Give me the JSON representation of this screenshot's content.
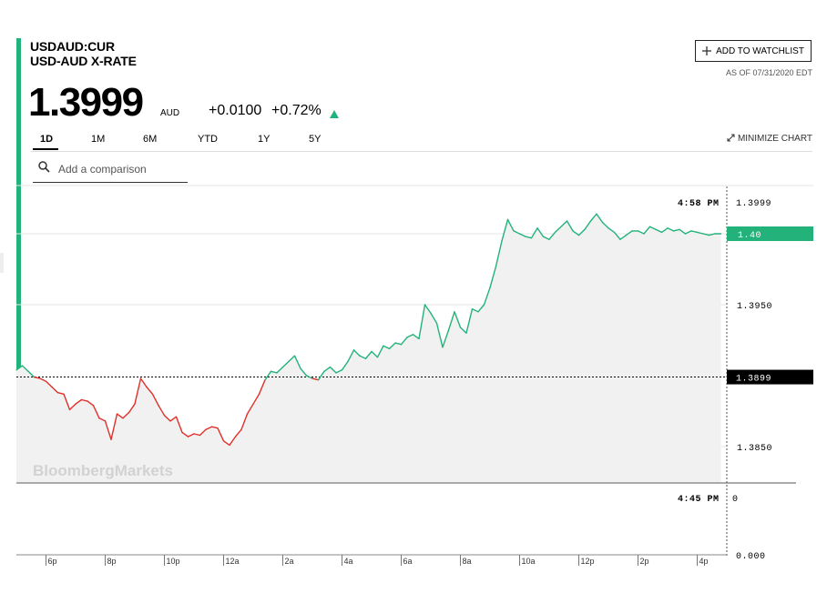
{
  "header": {
    "ticker": "USDAUD:CUR",
    "name": "USD-AUD X-RATE",
    "price": "1.3999",
    "currency": "AUD",
    "change": "+0.0100",
    "change_pct": "+0.72%",
    "watchlist_label": "ADD TO WATCHLIST",
    "as_of": "AS OF 07/31/2020 EDT"
  },
  "tabs": [
    {
      "label": "1D",
      "active": true
    },
    {
      "label": "1M",
      "active": false
    },
    {
      "label": "6M",
      "active": false
    },
    {
      "label": "YTD",
      "active": false
    },
    {
      "label": "1Y",
      "active": false
    },
    {
      "label": "5Y",
      "active": false
    }
  ],
  "minimize_label": "MINIMIZE CHART",
  "search": {
    "placeholder": "Add a comparison"
  },
  "colors": {
    "up": "#23b37a",
    "down": "#e0302a",
    "accent": "#23b37a",
    "reference": "#000000"
  },
  "chart_data": {
    "type": "line",
    "reference_value": 1.3899,
    "reference_label": "1.3899",
    "current_value": 1.4,
    "current_label": "1.40",
    "hover": {
      "time": "4:58 PM",
      "value": "1.3999"
    },
    "watermark": "BloombergMarkets",
    "ylim": [
      1.3825,
      1.4025
    ],
    "yticks": [
      {
        "value": 1.4,
        "label": "1.40"
      },
      {
        "value": 1.395,
        "label": "1.3950"
      },
      {
        "value": 1.385,
        "label": "1.3850"
      }
    ],
    "x_ticks": [
      "6p",
      "8p",
      "10p",
      "12a",
      "2a",
      "4a",
      "6a",
      "8a",
      "10a",
      "12p",
      "2p",
      "4p"
    ],
    "x": [
      0,
      0.2,
      0.4,
      0.6,
      0.8,
      1.0,
      1.2,
      1.4,
      1.6,
      1.8,
      2.0,
      2.2,
      2.4,
      2.6,
      2.8,
      3.0,
      3.2,
      3.4,
      3.6,
      3.8,
      4.0,
      4.2,
      4.4,
      4.6,
      4.8,
      5.0,
      5.2,
      5.4,
      5.6,
      5.8,
      6.0,
      6.2,
      6.4,
      6.6,
      6.8,
      7.0,
      7.2,
      7.4,
      7.6,
      7.8,
      8.0,
      8.2,
      8.4,
      8.6,
      8.8,
      9.0,
      9.2,
      9.4,
      9.6,
      9.8,
      10.0,
      10.2,
      10.4,
      10.6,
      10.8,
      11.0,
      11.2,
      11.4,
      11.6,
      11.8,
      12.0,
      12.2,
      12.4,
      12.6,
      12.8,
      13.0,
      13.2,
      13.4,
      13.6,
      13.8,
      14.0,
      14.2,
      14.4,
      14.6,
      14.8,
      15.0,
      15.2,
      15.4,
      15.6,
      15.8,
      16.0,
      16.2,
      16.4,
      16.6,
      16.8,
      17.0,
      17.2,
      17.4,
      17.6,
      17.8,
      18.0,
      18.2,
      18.4,
      18.6,
      18.8,
      19.0,
      19.2,
      19.4,
      19.6,
      19.8,
      20.0,
      20.2,
      20.4,
      20.6,
      20.8,
      21.0,
      21.2,
      21.4,
      21.6,
      21.8,
      22.0,
      22.2,
      22.4,
      22.6,
      22.8,
      23.0,
      23.2,
      23.4,
      23.6,
      23.8
    ],
    "series": [
      {
        "values": [
          1.3904,
          1.3907,
          1.3903,
          1.3899,
          1.3898,
          1.3896,
          1.3892,
          1.3888,
          1.3887,
          1.3876,
          1.388,
          1.3883,
          1.3882,
          1.3879,
          1.387,
          1.3868,
          1.3855,
          1.3873,
          1.387,
          1.3874,
          1.388,
          1.3898,
          1.3892,
          1.3887,
          1.3879,
          1.3872,
          1.3868,
          1.3871,
          1.386,
          1.3857,
          1.3859,
          1.3858,
          1.3862,
          1.3864,
          1.3863,
          1.3854,
          1.3851,
          1.3857,
          1.3862,
          1.3873,
          1.388,
          1.3887,
          1.3897,
          1.3903,
          1.3902,
          1.3906,
          1.391,
          1.3914,
          1.3905,
          1.39,
          1.3898,
          1.3897,
          1.3903,
          1.3906,
          1.3902,
          1.3904,
          1.391,
          1.3918,
          1.3914,
          1.3912,
          1.3917,
          1.3913,
          1.3921,
          1.3919,
          1.3923,
          1.3922,
          1.3927,
          1.3929,
          1.3926,
          1.395,
          1.3944,
          1.3937,
          1.392,
          1.3932,
          1.3945,
          1.3934,
          1.393,
          1.3947,
          1.3945,
          1.395,
          1.3962,
          1.3977,
          1.3995,
          1.401,
          1.4002,
          1.4,
          1.3998,
          1.3997,
          1.4004,
          1.3998,
          1.3996,
          1.4001,
          1.4005,
          1.4009,
          1.4002,
          1.3999,
          1.4003,
          1.4009,
          1.4014,
          1.4008,
          1.4004,
          1.4001,
          1.3996,
          1.3999,
          1.4002,
          1.4002,
          1.4,
          1.4005,
          1.4003,
          1.4001,
          1.4004,
          1.4002,
          1.4003,
          1.4,
          1.4002,
          1.4001,
          1.4,
          1.3999,
          1.4,
          1.4
        ]
      }
    ],
    "volume": {
      "hover": {
        "time": "4:45 PM",
        "value": "0"
      },
      "yticks": [
        "0.000"
      ]
    }
  }
}
